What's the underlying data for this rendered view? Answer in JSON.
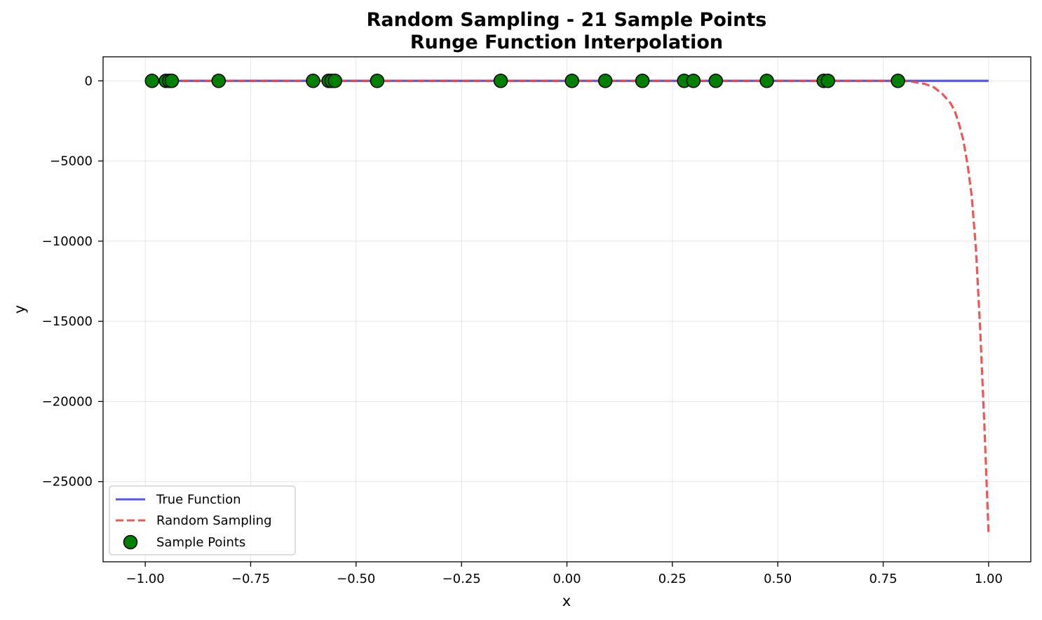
{
  "chart_data": {
    "type": "line",
    "title_line1": "Random Sampling - 21 Sample Points",
    "title_line2": "Runge Function Interpolation",
    "xlabel": "x",
    "ylabel": "y",
    "xlim": [
      -1.1,
      1.1
    ],
    "ylim": [
      -30000,
      1500
    ],
    "xticks": [
      -1.0,
      -0.75,
      -0.5,
      -0.25,
      0.0,
      0.25,
      0.5,
      0.75,
      1.0
    ],
    "xtick_labels": [
      "−1.00",
      "−0.75",
      "−0.50",
      "−0.25",
      "0.00",
      "0.25",
      "0.50",
      "0.75",
      "1.00"
    ],
    "yticks": [
      0,
      -5000,
      -10000,
      -15000,
      -20000,
      -25000
    ],
    "ytick_labels": [
      "0",
      "−5000",
      "−10000",
      "−15000",
      "−20000",
      "−25000"
    ],
    "grid": true,
    "legend_position": "lower-left",
    "series": [
      {
        "name": "True Function",
        "color": "#4444ee",
        "style": "solid",
        "x": [
          -1.0,
          -0.5,
          0.0,
          0.5,
          1.0
        ],
        "y": [
          0.038,
          0.138,
          1.0,
          0.138,
          0.038
        ]
      },
      {
        "name": "Random Sampling",
        "color": "#ee4444",
        "style": "dashed",
        "x": [
          -0.94,
          -0.5,
          0.0,
          0.5,
          0.79,
          0.82,
          0.85,
          0.87,
          0.89,
          0.91,
          0.92,
          0.93,
          0.94,
          0.95,
          0.96,
          0.97,
          0.98,
          0.99,
          1.0
        ],
        "y": [
          0,
          0,
          0,
          0,
          0,
          -50,
          -200,
          -400,
          -800,
          -1400,
          -1900,
          -2700,
          -3700,
          -5200,
          -7200,
          -10500,
          -15500,
          -21500,
          -28300
        ]
      }
    ],
    "sample_points": {
      "name": "Sample Points",
      "color": "#008000",
      "x": [
        -0.984,
        -0.951,
        -0.943,
        -0.937,
        -0.826,
        -0.602,
        -0.565,
        -0.558,
        -0.55,
        -0.45,
        -0.157,
        0.012,
        0.091,
        0.179,
        0.278,
        0.3,
        0.353,
        0.474,
        0.609,
        0.619,
        0.785
      ],
      "y": [
        0,
        0,
        0,
        0,
        0,
        0,
        0,
        0,
        0,
        0,
        0,
        0,
        0,
        0,
        0,
        0,
        0,
        0,
        0,
        0,
        0
      ]
    }
  }
}
